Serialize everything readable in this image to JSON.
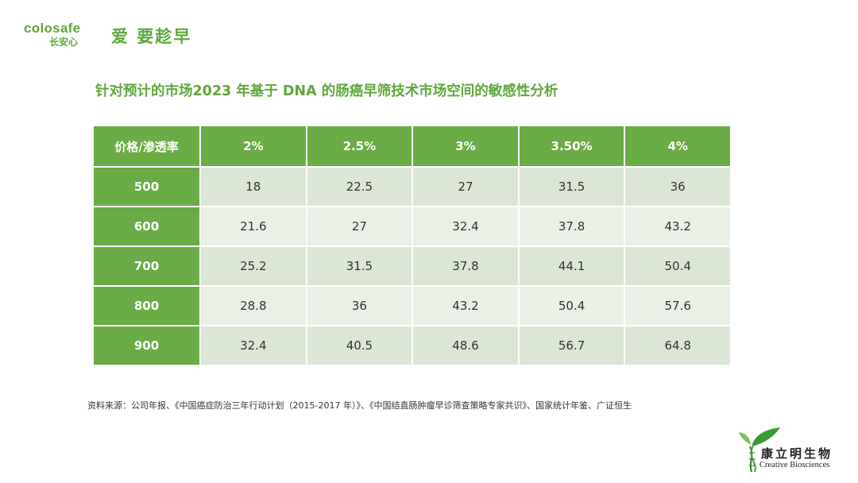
{
  "header": {
    "logo_text": "colosafe",
    "logo_cn": "长安心",
    "slogan": "爱 要趁早"
  },
  "title": "针对预计的市场2023 年基于 DNA 的肠癌早筛技术市场空间的敏感性分析",
  "table": {
    "corner_label": "价格/渗透率",
    "columns": [
      "2%",
      "2.5%",
      "3%",
      "3.50%",
      "4%"
    ],
    "rows": [
      {
        "label": "500",
        "values": [
          "18",
          "22.5",
          "27",
          "31.5",
          "36"
        ]
      },
      {
        "label": "600",
        "values": [
          "21.6",
          "27",
          "32.4",
          "37.8",
          "43.2"
        ]
      },
      {
        "label": "700",
        "values": [
          "25.2",
          "31.5",
          "37.8",
          "44.1",
          "50.4"
        ]
      },
      {
        "label": "800",
        "values": [
          "28.8",
          "36",
          "43.2",
          "50.4",
          "57.6"
        ]
      },
      {
        "label": "900",
        "values": [
          "32.4",
          "40.5",
          "48.6",
          "56.7",
          "64.8"
        ]
      }
    ]
  },
  "source": "资料来源：公司年报、《中国癌症防治三年行动计划（2015-2017 年）》、《中国结直肠肿瘤早诊筛查策略专家共识》、国家统计年鉴、广证恒生",
  "brand": {
    "cn": "康立明生物",
    "en": "Creative Biosciences"
  },
  "colors": {
    "accent": "#6aac46",
    "logo": "#5ea83c",
    "row_odd": "#dbe6d5",
    "row_even": "#eaf0e6"
  }
}
